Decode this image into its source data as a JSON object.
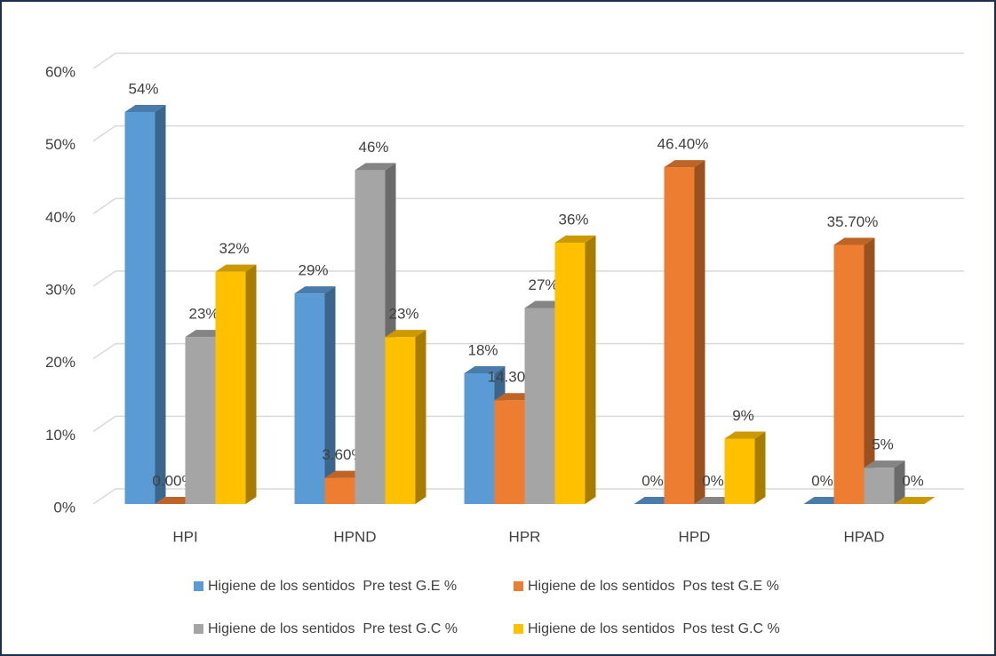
{
  "chart_data": {
    "type": "bar3d",
    "categories": [
      "HPI",
      "HPND",
      "HPR",
      "HPD",
      "HPAD"
    ],
    "series": [
      {
        "name": "Higiene de los sentidos  Pre test G.E %",
        "color": "#5b9bd5",
        "values": [
          54,
          29,
          18,
          0,
          0
        ],
        "value_labels": [
          "54%",
          "29%",
          "18%",
          "0%",
          "0%"
        ]
      },
      {
        "name": "Higiene de los sentidos  Pos test G.E %",
        "color": "#ed7d31",
        "values": [
          0,
          3.6,
          14.3,
          46.4,
          35.7
        ],
        "value_labels": [
          "0.00%",
          "3.60%",
          "14.30%",
          "46.40%",
          "35.70%"
        ]
      },
      {
        "name": "Higiene de los sentidos  Pre test G.C %",
        "color": "#a5a5a5",
        "values": [
          23,
          46,
          27,
          0,
          5
        ],
        "value_labels": [
          "23%",
          "46%",
          "27%",
          "0%",
          "5%"
        ]
      },
      {
        "name": "Higiene de los sentidos  Pos test G.C %",
        "color": "#ffc000",
        "values": [
          32,
          23,
          36,
          9,
          0
        ],
        "value_labels": [
          "32%",
          "23%",
          "36%",
          "9%",
          "0%"
        ]
      }
    ],
    "ylim": [
      0,
      60
    ],
    "yticks": [
      {
        "value": 0,
        "label": "0%"
      },
      {
        "value": 10,
        "label": "10%"
      },
      {
        "value": 20,
        "label": "20%"
      },
      {
        "value": 30,
        "label": "30%"
      },
      {
        "value": 40,
        "label": "40%"
      },
      {
        "value": 50,
        "label": "50%"
      },
      {
        "value": 60,
        "label": "60%"
      }
    ],
    "grid": true,
    "legend": "bottom"
  }
}
